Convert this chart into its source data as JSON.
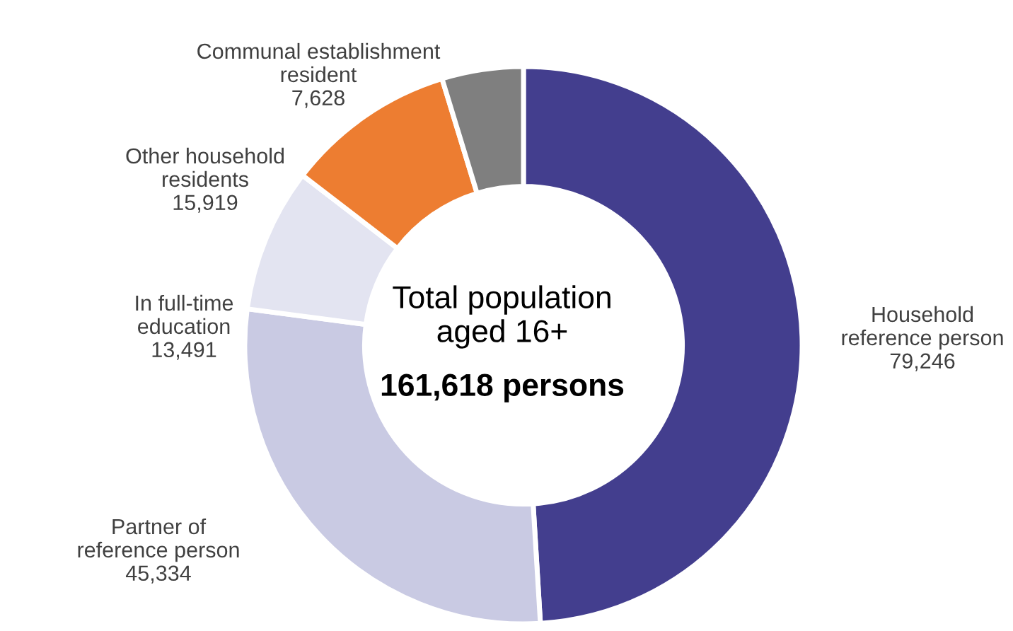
{
  "chart_data": {
    "type": "donut",
    "categories": [
      "Household\nreference person",
      "Partner of\nreference person",
      "In full-time\neducation",
      "Other household\nresidents",
      "Communal establishment\nresident"
    ],
    "values": [
      79246,
      45334,
      13491,
      15919,
      7628
    ],
    "colors": [
      "#433e8e",
      "#c9cae3",
      "#e3e4f1",
      "#ed7d31",
      "#7f7f7f"
    ],
    "value_labels": [
      "79,246",
      "45,334",
      "13,491",
      "15,919",
      "7,628"
    ],
    "legend": false,
    "annotations": [
      "Total population\naged 16+",
      "161,618 persons"
    ]
  }
}
